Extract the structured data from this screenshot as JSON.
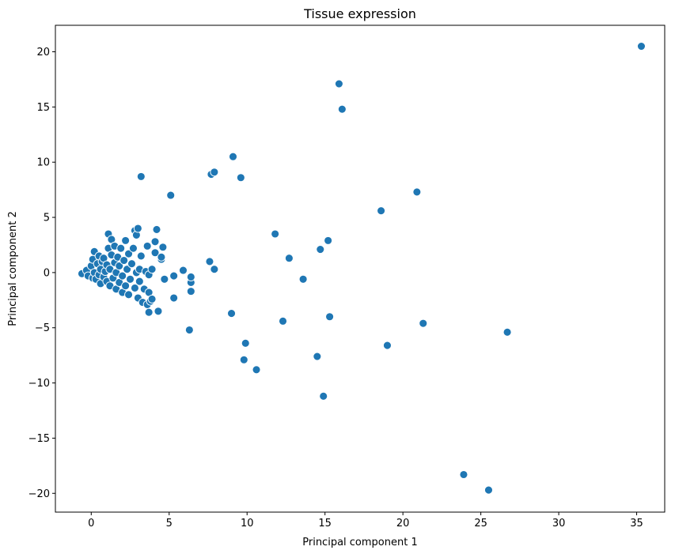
{
  "chart_data": {
    "type": "scatter",
    "title": "Tissue expression",
    "xlabel": "Principal component 1",
    "ylabel": "Principal component 2",
    "xlim": [
      -2.3,
      36.8
    ],
    "ylim": [
      -21.7,
      22.4
    ],
    "xticks": [
      0,
      5,
      10,
      15,
      20,
      25,
      30,
      35
    ],
    "yticks": [
      -20,
      -15,
      -10,
      -5,
      0,
      5,
      10,
      15,
      20
    ],
    "grid": false,
    "legend": "none",
    "marker_color": "#1f77b4",
    "marker_edge": "#ffffff",
    "series": [
      {
        "points": [
          [
            -0.6,
            -0.1
          ],
          [
            -0.3,
            0.2
          ],
          [
            -0.2,
            -0.3
          ],
          [
            0.0,
            0.6
          ],
          [
            0.1,
            -0.5
          ],
          [
            0.1,
            1.2
          ],
          [
            0.2,
            0.0
          ],
          [
            0.2,
            1.9
          ],
          [
            0.3,
            -0.6
          ],
          [
            0.4,
            0.8
          ],
          [
            0.5,
            -0.2
          ],
          [
            0.5,
            1.5
          ],
          [
            0.6,
            -1.0
          ],
          [
            0.6,
            0.3
          ],
          [
            0.7,
            1.0
          ],
          [
            0.8,
            -0.4
          ],
          [
            0.8,
            1.3
          ],
          [
            0.9,
            0.1
          ],
          [
            1.0,
            -0.8
          ],
          [
            1.0,
            0.7
          ],
          [
            1.1,
            2.2
          ],
          [
            1.1,
            3.5
          ],
          [
            1.2,
            -1.2
          ],
          [
            1.2,
            0.3
          ],
          [
            1.3,
            1.6
          ],
          [
            1.3,
            3.0
          ],
          [
            1.4,
            -0.5
          ],
          [
            1.5,
            0.9
          ],
          [
            1.5,
            2.4
          ],
          [
            1.6,
            -1.5
          ],
          [
            1.6,
            0.0
          ],
          [
            1.7,
            1.4
          ],
          [
            1.8,
            -0.9
          ],
          [
            1.8,
            0.6
          ],
          [
            1.9,
            2.2
          ],
          [
            2.0,
            -1.8
          ],
          [
            2.0,
            -0.3
          ],
          [
            2.1,
            1.1
          ],
          [
            2.2,
            2.9
          ],
          [
            2.2,
            -1.2
          ],
          [
            2.3,
            0.3
          ],
          [
            2.4,
            1.7
          ],
          [
            2.4,
            -2.0
          ],
          [
            2.5,
            -0.6
          ],
          [
            2.6,
            0.8
          ],
          [
            2.7,
            2.2
          ],
          [
            2.8,
            -1.4
          ],
          [
            2.8,
            3.8
          ],
          [
            2.9,
            0.0
          ],
          [
            2.9,
            3.4
          ],
          [
            3.0,
            4.0
          ],
          [
            3.0,
            -2.3
          ],
          [
            3.1,
            -0.8
          ],
          [
            3.1,
            0.3
          ],
          [
            3.2,
            1.5
          ],
          [
            3.2,
            8.7
          ],
          [
            3.3,
            -2.7
          ],
          [
            3.4,
            -1.5
          ],
          [
            3.5,
            0.1
          ],
          [
            3.6,
            -2.9
          ],
          [
            3.6,
            2.4
          ],
          [
            3.7,
            -0.2
          ],
          [
            3.7,
            -1.8
          ],
          [
            3.7,
            -3.6
          ],
          [
            3.8,
            -2.6
          ],
          [
            3.9,
            0.3
          ],
          [
            3.9,
            -2.4
          ],
          [
            4.1,
            1.8
          ],
          [
            4.1,
            2.8
          ],
          [
            4.2,
            3.9
          ],
          [
            4.3,
            -3.5
          ],
          [
            4.5,
            1.2
          ],
          [
            4.5,
            1.4
          ],
          [
            4.6,
            2.3
          ],
          [
            4.7,
            -0.6
          ],
          [
            5.1,
            7.0
          ],
          [
            5.3,
            -0.3
          ],
          [
            5.3,
            -2.3
          ],
          [
            5.9,
            0.2
          ],
          [
            6.3,
            -5.2
          ],
          [
            6.4,
            -0.9
          ],
          [
            6.4,
            -1.7
          ],
          [
            6.4,
            -0.4
          ],
          [
            7.6,
            1.0
          ],
          [
            7.7,
            8.9
          ],
          [
            7.9,
            9.1
          ],
          [
            7.9,
            0.3
          ],
          [
            9.0,
            -3.7
          ],
          [
            9.1,
            10.5
          ],
          [
            9.6,
            8.6
          ],
          [
            9.8,
            -7.9
          ],
          [
            9.9,
            -6.4
          ],
          [
            10.6,
            -8.8
          ],
          [
            11.8,
            3.5
          ],
          [
            12.3,
            -4.4
          ],
          [
            12.7,
            1.3
          ],
          [
            13.6,
            -0.6
          ],
          [
            14.5,
            -7.6
          ],
          [
            14.7,
            2.1
          ],
          [
            14.9,
            -11.2
          ],
          [
            15.2,
            2.9
          ],
          [
            15.3,
            -4.0
          ],
          [
            15.9,
            17.1
          ],
          [
            16.1,
            14.8
          ],
          [
            18.6,
            5.6
          ],
          [
            19.0,
            -6.6
          ],
          [
            20.9,
            7.3
          ],
          [
            21.3,
            -4.6
          ],
          [
            23.9,
            -18.3
          ],
          [
            25.5,
            -19.7
          ],
          [
            26.7,
            -5.4
          ],
          [
            35.3,
            20.5
          ]
        ]
      }
    ]
  }
}
